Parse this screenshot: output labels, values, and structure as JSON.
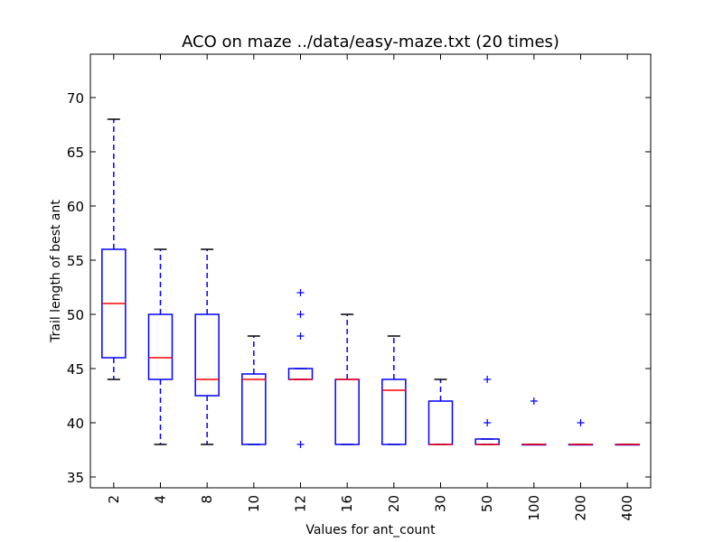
{
  "chart_data": {
    "type": "box",
    "title": "ACO on maze ../data/easy-maze.txt (20 times)",
    "xlabel": "Values for ant_count",
    "ylabel": "Trail length of best ant",
    "ylim": [
      34,
      74
    ],
    "yticks": [
      35,
      40,
      45,
      50,
      55,
      60,
      65,
      70
    ],
    "categories": [
      "2",
      "4",
      "8",
      "10",
      "12",
      "16",
      "20",
      "30",
      "50",
      "100",
      "200",
      "400"
    ],
    "boxes": [
      {
        "category": "2",
        "whisker_low": 44,
        "q1": 46,
        "median": 51,
        "q3": 56,
        "whisker_high": 68,
        "outliers": []
      },
      {
        "category": "4",
        "whisker_low": 38,
        "q1": 44,
        "median": 46,
        "q3": 50,
        "whisker_high": 56,
        "outliers": []
      },
      {
        "category": "8",
        "whisker_low": 38,
        "q1": 42.5,
        "median": 44,
        "q3": 50,
        "whisker_high": 56,
        "outliers": []
      },
      {
        "category": "10",
        "whisker_low": 38,
        "q1": 38,
        "median": 44,
        "q3": 44.5,
        "whisker_high": 48,
        "outliers": []
      },
      {
        "category": "12",
        "whisker_low": 44,
        "q1": 44,
        "median": 44,
        "q3": 45,
        "whisker_high": 45,
        "outliers": [
          52,
          50,
          48,
          38
        ]
      },
      {
        "category": "16",
        "whisker_low": 38,
        "q1": 38,
        "median": 44,
        "q3": 44,
        "whisker_high": 50,
        "outliers": []
      },
      {
        "category": "20",
        "whisker_low": 38,
        "q1": 38,
        "median": 43,
        "q3": 44,
        "whisker_high": 48,
        "outliers": []
      },
      {
        "category": "30",
        "whisker_low": 38,
        "q1": 38,
        "median": 38,
        "q3": 42,
        "whisker_high": 44,
        "outliers": []
      },
      {
        "category": "50",
        "whisker_low": 38,
        "q1": 38,
        "median": 38,
        "q3": 38.5,
        "whisker_high": 38.5,
        "outliers": [
          44,
          40
        ]
      },
      {
        "category": "100",
        "whisker_low": 38,
        "q1": 38,
        "median": 38,
        "q3": 38,
        "whisker_high": 38,
        "outliers": [
          42
        ]
      },
      {
        "category": "200",
        "whisker_low": 38,
        "q1": 38,
        "median": 38,
        "q3": 38,
        "whisker_high": 38,
        "outliers": [
          40
        ]
      },
      {
        "category": "400",
        "whisker_low": 38,
        "q1": 38,
        "median": 38,
        "q3": 38,
        "whisker_high": 38,
        "outliers": []
      }
    ],
    "colors": {
      "box": "#0000ff",
      "whisker": "#0000ff",
      "median": "#ff0000",
      "cap": "#000000",
      "outlier": "#0000ff",
      "axes": "#000000"
    },
    "grid": false
  }
}
